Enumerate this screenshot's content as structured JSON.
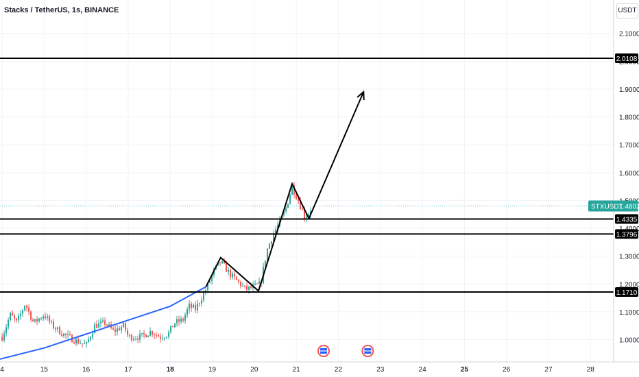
{
  "header": {
    "title": "Stacks / TetherUS, 1s, BINANCE",
    "currency": "USDT"
  },
  "chart_data": {
    "type": "candlestick",
    "ylim": [
      0.92,
      2.22
    ],
    "yticks": [
      "2.1000",
      "2.0000",
      "1.9000",
      "1.8000",
      "1.7000",
      "1.6000",
      "1.5000",
      "1.4000",
      "1.3000",
      "1.2000",
      "1.1000",
      "1.0000"
    ],
    "ytick_values": [
      2.1,
      2.0,
      1.9,
      1.8,
      1.7,
      1.6,
      1.5,
      1.4,
      1.3,
      1.2,
      1.1,
      1.0
    ],
    "xticks": [
      "4",
      "15",
      "16",
      "17",
      "18",
      "19",
      "20",
      "21",
      "22",
      "23",
      "24",
      "25",
      "26",
      "27",
      "28"
    ],
    "xtick_bold": [
      "18",
      "25"
    ],
    "xlim_days": [
      13.95,
      28.55
    ],
    "ticker_label": {
      "symbol": "STXUSDT",
      "price": 1.4802,
      "price_text": "1.4802",
      "color": "#26a69a"
    },
    "horizontal_levels": [
      {
        "value": 2.0108,
        "label": "2.0108"
      },
      {
        "value": 1.4335,
        "label": "1.4335"
      },
      {
        "value": 1.3796,
        "label": "1.3796"
      },
      {
        "value": 1.171,
        "label": "1.1710"
      }
    ],
    "up_color": "#26a69a",
    "down_color": "#ef5350",
    "trend_curve": {
      "color": "#2962ff",
      "points": [
        [
          13.95,
          0.93
        ],
        [
          15.0,
          0.97
        ],
        [
          16.0,
          1.02
        ],
        [
          17.0,
          1.07
        ],
        [
          18.0,
          1.12
        ],
        [
          18.85,
          1.19
        ]
      ]
    },
    "annotation_path": {
      "color": "#000000",
      "points": [
        [
          18.85,
          1.19
        ],
        [
          19.2,
          1.295
        ],
        [
          20.1,
          1.175
        ],
        [
          20.9,
          1.56
        ],
        [
          21.3,
          1.435
        ],
        [
          22.6,
          1.89
        ]
      ]
    },
    "arrow_head": "up-right",
    "event_markers": [
      {
        "day": 21.65
      },
      {
        "day": 22.7
      }
    ],
    "price_path": [
      [
        14.0,
        1.01
      ],
      [
        14.2,
        1.09
      ],
      [
        14.35,
        1.06
      ],
      [
        14.55,
        1.13
      ],
      [
        14.75,
        1.06
      ],
      [
        15.0,
        1.09
      ],
      [
        15.2,
        1.05
      ],
      [
        15.45,
        1.02
      ],
      [
        15.7,
        1.0
      ],
      [
        16.0,
        0.98
      ],
      [
        16.2,
        1.05
      ],
      [
        16.45,
        1.06
      ],
      [
        16.65,
        1.03
      ],
      [
        16.9,
        1.05
      ],
      [
        17.0,
        1.01
      ],
      [
        17.3,
        1.01
      ],
      [
        17.55,
        1.03
      ],
      [
        17.75,
        1.01
      ],
      [
        17.95,
        1.02
      ],
      [
        18.1,
        1.06
      ],
      [
        18.3,
        1.07
      ],
      [
        18.45,
        1.12
      ],
      [
        18.6,
        1.11
      ],
      [
        18.85,
        1.18
      ],
      [
        19.05,
        1.25
      ],
      [
        19.2,
        1.28
      ],
      [
        19.45,
        1.23
      ],
      [
        19.6,
        1.21
      ],
      [
        19.8,
        1.18
      ],
      [
        20.0,
        1.19
      ],
      [
        20.15,
        1.2
      ],
      [
        20.3,
        1.32
      ],
      [
        20.45,
        1.38
      ],
      [
        20.6,
        1.42
      ],
      [
        20.75,
        1.47
      ],
      [
        20.9,
        1.55
      ],
      [
        21.05,
        1.5
      ],
      [
        21.2,
        1.44
      ],
      [
        21.3,
        1.455
      ],
      [
        21.38,
        1.48
      ]
    ]
  }
}
